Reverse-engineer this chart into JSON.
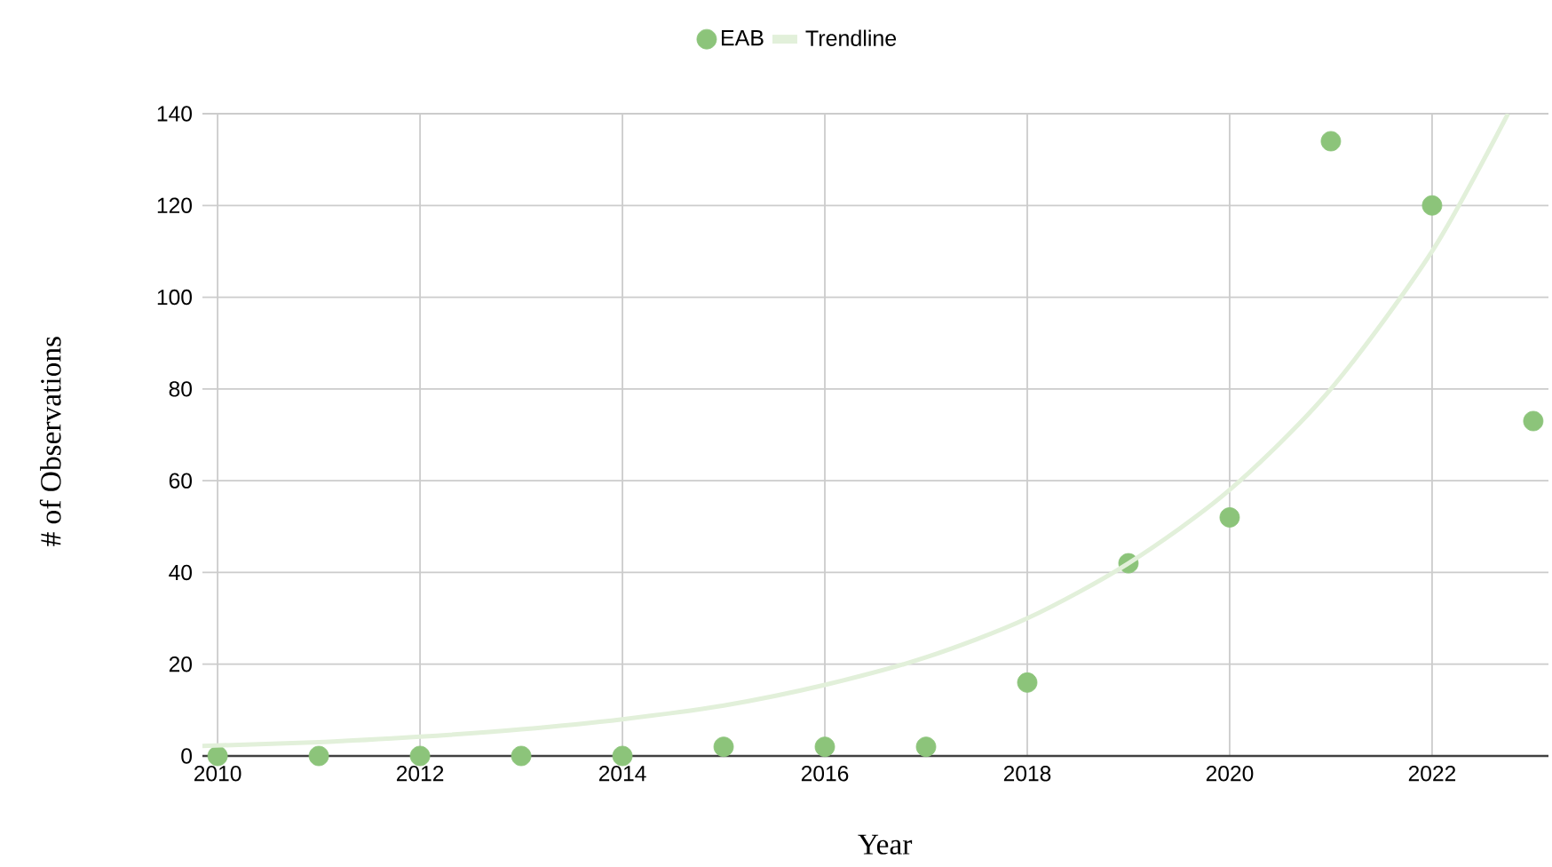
{
  "chart_data": {
    "type": "scatter",
    "xlabel": "Year",
    "ylabel": "# of Observations",
    "xlim": [
      2009.85,
      2023.15
    ],
    "ylim": [
      0,
      140
    ],
    "xticks": [
      2010,
      2012,
      2014,
      2016,
      2018,
      2020,
      2022
    ],
    "yticks": [
      0,
      20,
      40,
      60,
      80,
      100,
      120,
      140
    ],
    "grid": true,
    "legend": "top",
    "series": [
      {
        "name": "EAB",
        "color": "#8cc47a",
        "marker": "circle",
        "x": [
          2010,
          2011,
          2012,
          2013,
          2014,
          2015,
          2016,
          2017,
          2018,
          2019,
          2020,
          2021,
          2022,
          2023
        ],
        "values": [
          0,
          0,
          0,
          0,
          0,
          2,
          2,
          2,
          16,
          42,
          52,
          134,
          120,
          73
        ]
      },
      {
        "name": "Trendline",
        "type": "line",
        "marker": "none",
        "color": "#e2f0da",
        "x": [
          2009.85,
          2011,
          2012,
          2013,
          2014,
          2015,
          2016,
          2017,
          2018,
          2019,
          2020,
          2021,
          2022,
          2022.75
        ],
        "values": [
          2.2,
          3,
          4.2,
          5.8,
          8,
          11,
          15.5,
          21.5,
          30,
          42,
          58,
          80,
          110,
          140
        ]
      }
    ]
  }
}
